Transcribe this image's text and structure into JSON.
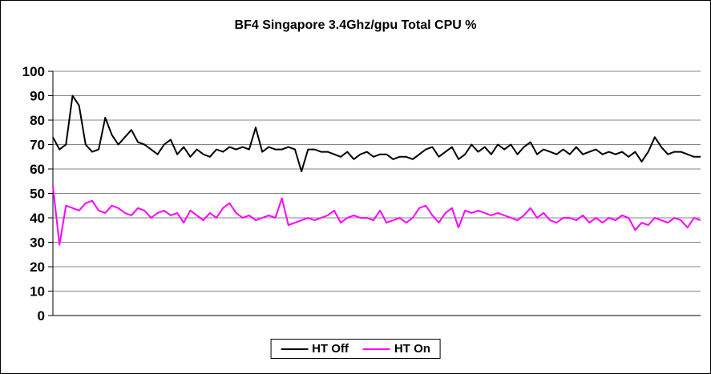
{
  "chart_data": {
    "type": "line",
    "title": "BF4 Singapore 3.4Ghz/gpu Total CPU %",
    "xlabel": "",
    "ylabel": "",
    "ylim": [
      0,
      100
    ],
    "ytick_step": 10,
    "grid": true,
    "legend_position": "bottom",
    "gridline_color": "#848484",
    "axis_color": "#000000",
    "series": [
      {
        "name": "HT Off",
        "color": "#000000",
        "values": [
          73,
          68,
          70,
          90,
          86,
          70,
          67,
          68,
          81,
          74,
          70,
          73,
          76,
          71,
          70,
          68,
          66,
          70,
          72,
          66,
          69,
          65,
          68,
          66,
          65,
          68,
          67,
          69,
          68,
          69,
          68,
          77,
          67,
          69,
          68,
          68,
          69,
          68,
          59,
          68,
          68,
          67,
          67,
          66,
          65,
          67,
          64,
          66,
          67,
          65,
          66,
          66,
          64,
          65,
          65,
          64,
          66,
          68,
          69,
          65,
          67,
          69,
          64,
          66,
          70,
          67,
          69,
          66,
          70,
          68,
          70,
          66,
          69,
          71,
          66,
          68,
          67,
          66,
          68,
          66,
          69,
          66,
          67,
          68,
          66,
          67,
          66,
          67,
          65,
          67,
          63,
          67,
          73,
          69,
          66,
          67,
          67,
          66,
          65,
          65
        ]
      },
      {
        "name": "HT On",
        "color": "#FF00FF",
        "values": [
          53,
          29,
          45,
          44,
          43,
          46,
          47,
          43,
          42,
          45,
          44,
          42,
          41,
          44,
          43,
          40,
          42,
          43,
          41,
          42,
          38,
          43,
          41,
          39,
          42,
          40,
          44,
          46,
          42,
          40,
          41,
          39,
          40,
          41,
          40,
          48,
          37,
          38,
          39,
          40,
          39,
          40,
          41,
          43,
          38,
          40,
          41,
          40,
          40,
          39,
          43,
          38,
          39,
          40,
          38,
          40,
          44,
          45,
          41,
          38,
          42,
          44,
          36,
          43,
          42,
          43,
          42,
          41,
          42,
          41,
          40,
          39,
          41,
          44,
          40,
          42,
          39,
          38,
          40,
          40,
          39,
          41,
          38,
          40,
          38,
          40,
          39,
          41,
          40,
          35,
          38,
          37,
          40,
          39,
          38,
          40,
          39,
          36,
          40,
          39
        ]
      }
    ]
  }
}
